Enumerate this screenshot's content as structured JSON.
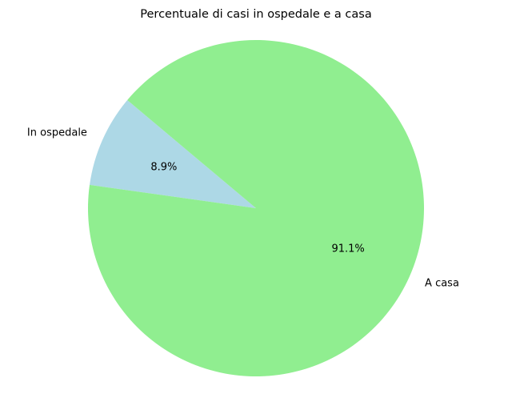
{
  "chart_data": {
    "type": "pie",
    "title": "Percentuale di casi in ospedale e a casa",
    "slices": [
      {
        "label": "In ospedale",
        "value": 8.9,
        "pct_label": "8.9%",
        "color": "#add8e6"
      },
      {
        "label": "A casa",
        "value": 91.1,
        "pct_label": "91.1%",
        "color": "#90ee90"
      }
    ],
    "start_angle_deg": 140,
    "direction": "counterclockwise"
  }
}
